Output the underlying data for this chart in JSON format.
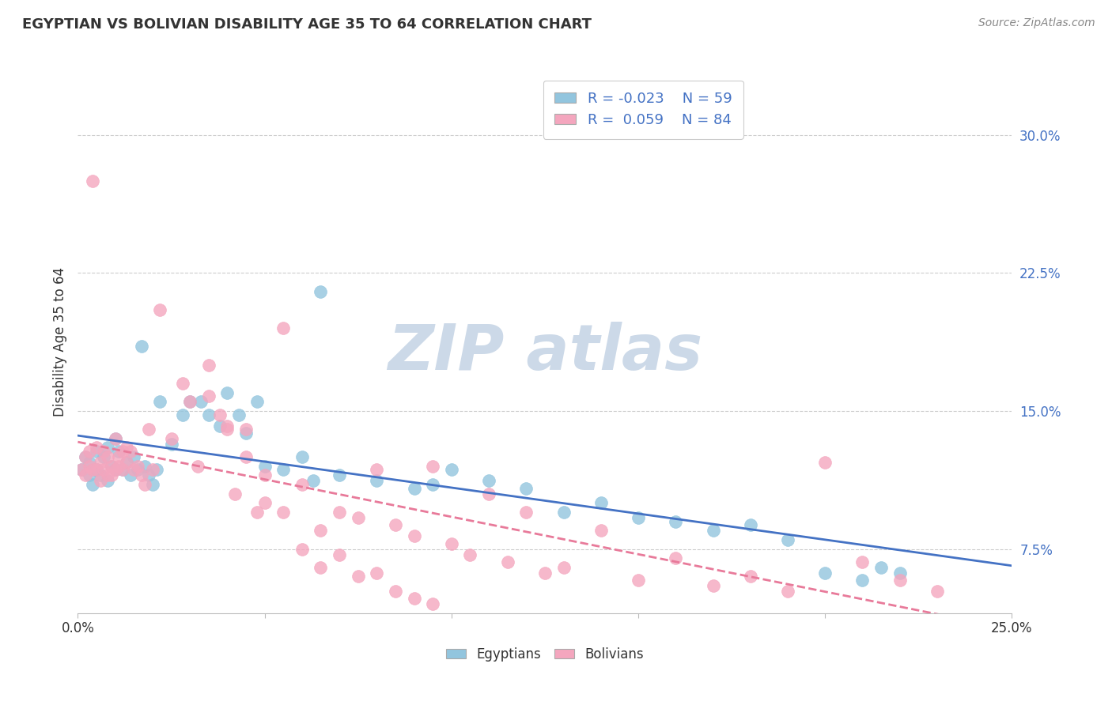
{
  "title": "EGYPTIAN VS BOLIVIAN DISABILITY AGE 35 TO 64 CORRELATION CHART",
  "source": "Source: ZipAtlas.com",
  "ylabel": "Disability Age 35 to 64",
  "ytick_vals": [
    0.075,
    0.15,
    0.225,
    0.3
  ],
  "ytick_labels": [
    "7.5%",
    "15.0%",
    "22.5%",
    "30.0%"
  ],
  "xlim": [
    0.0,
    0.25
  ],
  "ylim": [
    0.04,
    0.335
  ],
  "blue_color": "#92c5de",
  "pink_color": "#f4a6be",
  "trend_blue": "#4472c4",
  "trend_pink": "#e87a9a",
  "background_color": "#ffffff",
  "grid_color": "#cccccc",
  "watermark_color": "#ccd9e8",
  "label_color": "#4472c4",
  "egyptians_x": [
    0.001,
    0.002,
    0.003,
    0.003,
    0.004,
    0.005,
    0.005,
    0.006,
    0.007,
    0.008,
    0.008,
    0.009,
    0.01,
    0.01,
    0.011,
    0.012,
    0.013,
    0.014,
    0.015,
    0.016,
    0.017,
    0.018,
    0.019,
    0.02,
    0.021,
    0.022,
    0.025,
    0.028,
    0.03,
    0.033,
    0.035,
    0.038,
    0.04,
    0.043,
    0.045,
    0.048,
    0.05,
    0.055,
    0.06,
    0.063,
    0.065,
    0.07,
    0.08,
    0.09,
    0.095,
    0.1,
    0.11,
    0.12,
    0.13,
    0.14,
    0.15,
    0.16,
    0.17,
    0.18,
    0.19,
    0.2,
    0.21,
    0.215,
    0.22
  ],
  "egyptians_y": [
    0.118,
    0.125,
    0.115,
    0.122,
    0.11,
    0.118,
    0.128,
    0.115,
    0.125,
    0.112,
    0.13,
    0.12,
    0.118,
    0.135,
    0.128,
    0.118,
    0.122,
    0.115,
    0.125,
    0.118,
    0.185,
    0.12,
    0.115,
    0.11,
    0.118,
    0.155,
    0.132,
    0.148,
    0.155,
    0.155,
    0.148,
    0.142,
    0.16,
    0.148,
    0.138,
    0.155,
    0.12,
    0.118,
    0.125,
    0.112,
    0.215,
    0.115,
    0.112,
    0.108,
    0.11,
    0.118,
    0.112,
    0.108,
    0.095,
    0.1,
    0.092,
    0.09,
    0.085,
    0.088,
    0.08,
    0.062,
    0.058,
    0.065,
    0.062
  ],
  "bolivians_x": [
    0.001,
    0.002,
    0.002,
    0.003,
    0.003,
    0.004,
    0.004,
    0.005,
    0.005,
    0.006,
    0.006,
    0.007,
    0.007,
    0.008,
    0.008,
    0.009,
    0.009,
    0.01,
    0.01,
    0.011,
    0.011,
    0.012,
    0.012,
    0.013,
    0.013,
    0.014,
    0.015,
    0.016,
    0.017,
    0.018,
    0.019,
    0.02,
    0.022,
    0.025,
    0.028,
    0.03,
    0.032,
    0.035,
    0.038,
    0.04,
    0.042,
    0.045,
    0.048,
    0.05,
    0.055,
    0.06,
    0.065,
    0.07,
    0.075,
    0.08,
    0.085,
    0.09,
    0.095,
    0.1,
    0.105,
    0.11,
    0.115,
    0.12,
    0.125,
    0.13,
    0.14,
    0.15,
    0.16,
    0.17,
    0.18,
    0.19,
    0.2,
    0.21,
    0.22,
    0.23,
    0.035,
    0.04,
    0.045,
    0.05,
    0.055,
    0.06,
    0.065,
    0.07,
    0.075,
    0.08,
    0.085,
    0.09,
    0.095
  ],
  "bolivians_y": [
    0.118,
    0.115,
    0.125,
    0.12,
    0.128,
    0.275,
    0.118,
    0.13,
    0.118,
    0.122,
    0.112,
    0.128,
    0.118,
    0.115,
    0.125,
    0.12,
    0.115,
    0.135,
    0.118,
    0.125,
    0.12,
    0.118,
    0.128,
    0.122,
    0.13,
    0.128,
    0.118,
    0.12,
    0.115,
    0.11,
    0.14,
    0.118,
    0.205,
    0.135,
    0.165,
    0.155,
    0.12,
    0.158,
    0.148,
    0.142,
    0.105,
    0.14,
    0.095,
    0.1,
    0.195,
    0.11,
    0.085,
    0.095,
    0.092,
    0.118,
    0.088,
    0.082,
    0.12,
    0.078,
    0.072,
    0.105,
    0.068,
    0.095,
    0.062,
    0.065,
    0.085,
    0.058,
    0.07,
    0.055,
    0.06,
    0.052,
    0.122,
    0.068,
    0.058,
    0.052,
    0.175,
    0.14,
    0.125,
    0.115,
    0.095,
    0.075,
    0.065,
    0.072,
    0.06,
    0.062,
    0.052,
    0.048,
    0.045
  ]
}
